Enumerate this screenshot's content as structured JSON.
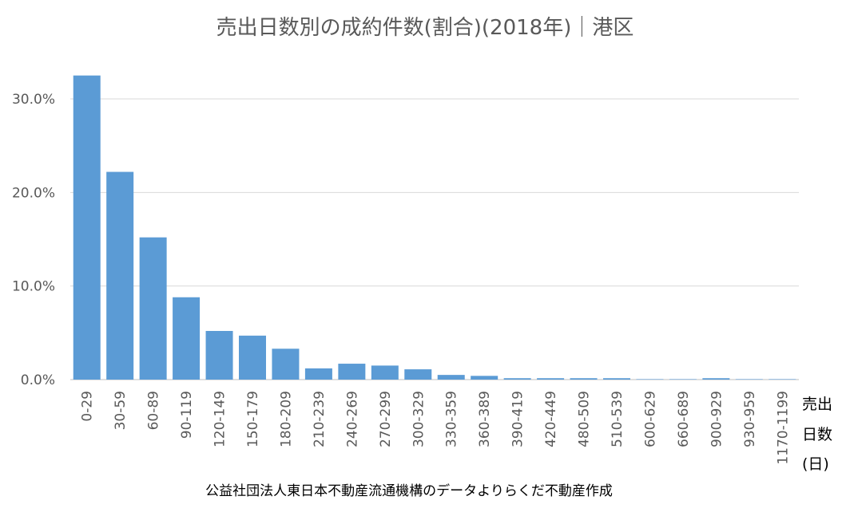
{
  "chart_data": {
    "type": "bar",
    "title": "売出日数別の成約件数(割合)(2018年)｜港区",
    "xlabel_lines": [
      "売出",
      "日数",
      "(日)"
    ],
    "ylabel": "",
    "ylim": [
      0,
      33
    ],
    "yticks": [
      "0.0%",
      "10.0%",
      "20.0%",
      "30.0%"
    ],
    "ytick_values": [
      0,
      10,
      20,
      30
    ],
    "grid": true,
    "bar_color": "#5B9BD5",
    "categories": [
      "0-29",
      "30-59",
      "60-89",
      "90-119",
      "120-149",
      "150-179",
      "180-209",
      "210-239",
      "240-269",
      "270-299",
      "300-329",
      "330-359",
      "360-389",
      "390-419",
      "420-449",
      "480-509",
      "510-539",
      "600-629",
      "660-689",
      "900-929",
      "930-959",
      "1170-1199"
    ],
    "values": [
      32.5,
      22.2,
      15.2,
      8.8,
      5.2,
      4.7,
      3.3,
      1.2,
      1.7,
      1.5,
      1.1,
      0.5,
      0.4,
      0.15,
      0.15,
      0.15,
      0.15,
      0.05,
      0.05,
      0.15,
      0.05,
      0.05
    ],
    "unit": "%"
  },
  "source": "公益社団法人東日本不動産流通機構のデータよりらくだ不動産作成"
}
